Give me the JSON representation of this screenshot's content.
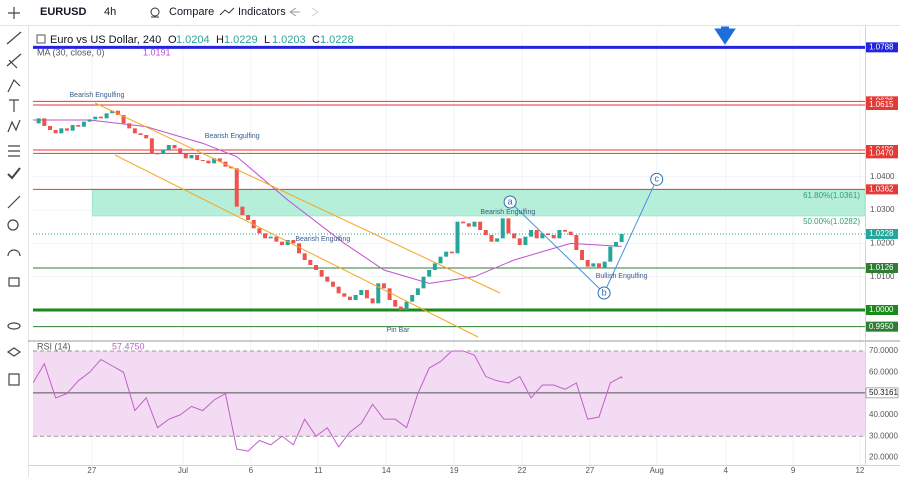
{
  "toolbar": {
    "symbol": "EURUSD",
    "interval": "4h",
    "compare": "Compare",
    "indicators": "Indicators"
  },
  "chart_data": {
    "type": "candlestick",
    "title": "Euro vs US Dollar, 240",
    "ohlc_labels": [
      "O",
      "H",
      "L",
      "C"
    ],
    "ohlc": [
      1.0204,
      1.0229,
      1.0203,
      1.0228
    ],
    "up_color": "#26a69a",
    "down_color": "#ef5350",
    "closes": [
      1.056,
      1.0575,
      1.0552,
      1.054,
      1.053,
      1.0545,
      1.0538,
      1.0555,
      1.055,
      1.0565,
      1.0572,
      1.058,
      1.0575,
      1.059,
      1.0598,
      1.0585,
      1.056,
      1.0545,
      1.053,
      1.0525,
      1.0515,
      1.047,
      1.0468,
      1.048,
      1.0495,
      1.0485,
      1.047,
      1.0455,
      1.0465,
      1.045,
      1.0448,
      1.044,
      1.0455,
      1.0445,
      1.043,
      1.0425,
      1.031,
      1.0285,
      1.027,
      1.0245,
      1.023,
      1.0215,
      1.022,
      1.0205,
      1.0195,
      1.021,
      1.02,
      1.017,
      1.015,
      1.0135,
      1.012,
      1.01,
      1.0085,
      1.007,
      1.005,
      1.004,
      1.003,
      1.0045,
      1.006,
      1.0035,
      1.002,
      1.008,
      1.0065,
      1.003,
      1.001,
      1.0,
      1.0025,
      1.0045,
      1.0065,
      1.01,
      1.012,
      1.014,
      1.016,
      1.0175,
      1.017,
      1.0265,
      1.026,
      1.025,
      1.0265,
      1.024,
      1.0225,
      1.0205,
      1.0215,
      1.0275,
      1.023,
      1.0215,
      1.0195,
      1.022,
      1.024,
      1.0215,
      1.023,
      1.0225,
      1.0215,
      1.024,
      1.0235,
      1.0225,
      1.018,
      1.015,
      1.013,
      1.014,
      1.0125,
      1.0145,
      1.019,
      1.0204,
      1.0228
    ],
    "xlim": [
      0,
      147
    ],
    "xticks": [
      {
        "value": 10.4,
        "label": "27"
      },
      {
        "value": 26.5,
        "label": "Jul"
      },
      {
        "value": 38.5,
        "label": "6"
      },
      {
        "value": 50.4,
        "label": "11"
      },
      {
        "value": 62.4,
        "label": "14"
      },
      {
        "value": 74.4,
        "label": "19"
      },
      {
        "value": 86.4,
        "label": "22"
      },
      {
        "value": 98.4,
        "label": "27"
      },
      {
        "value": 110.2,
        "label": "Aug"
      },
      {
        "value": 122.4,
        "label": "4"
      },
      {
        "value": 134.3,
        "label": "9"
      },
      {
        "value": 146.1,
        "label": "12"
      }
    ],
    "ylim": [
      0.991,
      1.084
    ],
    "yticks": [
      {
        "value": 1.04,
        "label": "1.0400"
      },
      {
        "value": 1.03,
        "label": "1.0300"
      },
      {
        "value": 1.02,
        "label": "1.0200"
      },
      {
        "value": 1.01,
        "label": "1.0100"
      }
    ],
    "levels": [
      {
        "value": 1.0788,
        "label": "1.0788",
        "color": "#2424e0",
        "width": 3
      },
      {
        "value": 1.0626,
        "label": "1.0626",
        "color": "#e53935",
        "width": 1
      },
      {
        "value": 1.0615,
        "label": "1.0615",
        "color": "#e53935",
        "width": 1
      },
      {
        "value": 1.048,
        "label": "1.0480",
        "color": "#e53935",
        "width": 1
      },
      {
        "value": 1.047,
        "label": "1.0470",
        "color": "#e53935",
        "width": 1
      },
      {
        "value": 1.0362,
        "label": "1.0362",
        "color": "#e53935",
        "width": 1
      },
      {
        "value": 1.0126,
        "label": "1.0126",
        "color": "#2e7d32",
        "width": 1
      },
      {
        "value": 1,
        "label": "1.0000",
        "color": "#1b8a1b",
        "width": 3
      },
      {
        "value": 0.995,
        "label": "0.9950",
        "color": "#2e7d32",
        "width": 1
      }
    ],
    "current": {
      "value": 1.0228,
      "label": "1.0228",
      "color": "#26a69a"
    },
    "ma": {
      "name": "MA (30, close, 0)",
      "last": 1.0191,
      "color": "#c050d0",
      "x": [
        0,
        10,
        20,
        30,
        36,
        45,
        55,
        62,
        70,
        78,
        85,
        95,
        104
      ],
      "values": [
        1.057,
        1.057,
        1.055,
        1.05,
        1.046,
        1.033,
        1.02,
        1.012,
        1.008,
        1.01,
        1.015,
        1.02,
        1.0191
      ]
    },
    "fib": {
      "top": 1.0361,
      "bottom": 1.0282,
      "x_start": 10.5,
      "top_label": "61.80%(1.0361)",
      "bottom_label": "50.00%(1.0282)",
      "color": "#b6efd9"
    },
    "annotations": [
      {
        "text": "Bearish Engulfing",
        "x": 11.3,
        "y": 1.0644
      },
      {
        "text": "Bearish Engulfing",
        "x": 35.2,
        "y": 1.0521
      },
      {
        "text": "Bearish Engulfing",
        "x": 51.2,
        "y": 1.0213
      },
      {
        "text": "Bearish Engulfing",
        "x": 83.9,
        "y": 1.0294
      },
      {
        "text": "Bullish Engulfing",
        "x": 104,
        "y": 1.0102
      },
      {
        "text": "Pin Bar",
        "x": 64.5,
        "y": 0.994
      }
    ],
    "waves": [
      {
        "label": "a",
        "x": 84.3,
        "y": 1.0324
      },
      {
        "label": "b",
        "x": 100.9,
        "y": 1.0051
      },
      {
        "label": "c",
        "x": 110.2,
        "y": 1.0392
      }
    ]
  },
  "rsi": {
    "name": "RSI (14)",
    "last": {
      "value": 57.475,
      "label": "57.4750"
    },
    "color": "#c060c8",
    "band_color": "#f3dcf3",
    "band": [
      30,
      70
    ],
    "ylim": [
      16.5,
      74.2
    ],
    "yticks": [
      {
        "value": 70,
        "label": "70.0000"
      },
      {
        "value": 60,
        "label": "60.0000"
      },
      {
        "value": 40,
        "label": "40.0000"
      },
      {
        "value": 30,
        "label": "30.0000"
      },
      {
        "value": 20,
        "label": "20.0000"
      }
    ],
    "marker": {
      "value": 50.3161,
      "label": "50.3161"
    },
    "x": [
      0,
      2,
      4,
      6,
      8,
      10,
      12,
      14,
      16,
      18,
      20,
      22,
      24,
      26,
      28,
      30,
      32,
      34,
      36,
      38,
      40,
      42,
      44,
      46,
      48,
      50,
      52,
      54,
      56,
      58,
      60,
      62,
      64,
      66,
      68,
      70,
      72,
      74,
      76,
      78,
      80,
      82,
      84,
      86,
      88,
      90,
      92,
      94,
      96,
      98,
      100,
      102,
      104
    ],
    "values": [
      55,
      64,
      48,
      50,
      56,
      60,
      66,
      63,
      60,
      42,
      48,
      34,
      38,
      40,
      44,
      42,
      47,
      50,
      24,
      23,
      28,
      26,
      30,
      26,
      38,
      30,
      34,
      25,
      32,
      36,
      45,
      38,
      38,
      34,
      50,
      62,
      65,
      70,
      70,
      68,
      58,
      56,
      55,
      58,
      48,
      54,
      54,
      52,
      55,
      38,
      39,
      55,
      58
    ]
  }
}
